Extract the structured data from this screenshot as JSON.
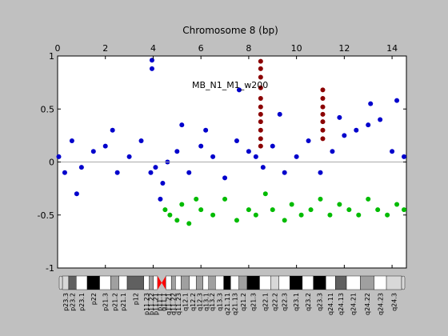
{
  "chart_data": {
    "type": "scatter",
    "title": "Chromosome 8 (bp)",
    "annotation": "MB_N1_M1_w200",
    "xlabel": "",
    "ylabel": "",
    "xlim": [
      0,
      14.6
    ],
    "ylim": [
      -1,
      1
    ],
    "x_ticks": [
      0,
      2,
      4,
      6,
      8,
      10,
      12,
      14
    ],
    "x_tick_labels": [
      "0",
      "2",
      "4",
      "6",
      "8",
      "10",
      "12",
      "14"
    ],
    "y_ticks": [
      1,
      0.5,
      0,
      -0.5,
      -1
    ],
    "y_tick_labels": [
      "1",
      "0.5",
      "0",
      "-0.5",
      "-1"
    ],
    "x_axis_position": "top",
    "grid": false,
    "baseline": 0,
    "colors": {
      "neutral": "#0000cc",
      "gain": "#8b0000",
      "loss": "#00bb00",
      "baseline": "#aaaaaa",
      "centromere": "#ff0000"
    },
    "series": [
      {
        "role": "neutral",
        "x": [
          0.05,
          0.3,
          0.6,
          1.0,
          1.5,
          2.0,
          2.5,
          3.0,
          3.5,
          3.9,
          4.1,
          4.4,
          4.6,
          5.0,
          5.5,
          6.0,
          6.5,
          7.0,
          7.5,
          8.0,
          8.3,
          8.6,
          9.0,
          9.5,
          10.0,
          10.5,
          11.0,
          11.5,
          12.0,
          12.5,
          13.0,
          13.5,
          14.0,
          14.5,
          3.95,
          3.95,
          4.3,
          0.8,
          2.3,
          5.2,
          6.2,
          7.6,
          9.3,
          11.8,
          13.1,
          14.2
        ],
        "y": [
          0.05,
          -0.1,
          0.2,
          -0.05,
          0.1,
          0.15,
          -0.1,
          0.05,
          0.2,
          -0.1,
          -0.05,
          -0.2,
          0.0,
          0.1,
          -0.1,
          0.15,
          0.05,
          -0.15,
          0.2,
          0.1,
          0.05,
          -0.05,
          0.15,
          -0.1,
          0.05,
          0.2,
          -0.1,
          0.1,
          0.25,
          0.3,
          0.35,
          0.4,
          0.1,
          0.05,
          0.96,
          0.88,
          -0.35,
          -0.3,
          0.3,
          0.35,
          0.3,
          0.68,
          0.45,
          0.42,
          0.55,
          0.58
        ]
      },
      {
        "role": "gain",
        "x": [
          8.5,
          8.5,
          8.5,
          8.5,
          8.5,
          8.5,
          8.5,
          8.5,
          8.5,
          8.5,
          8.5,
          11.1,
          11.1,
          11.1,
          11.1,
          11.1,
          11.1,
          11.1
        ],
        "y": [
          0.95,
          0.88,
          0.8,
          0.7,
          0.6,
          0.52,
          0.45,
          0.38,
          0.3,
          0.22,
          0.15,
          0.68,
          0.6,
          0.52,
          0.45,
          0.38,
          0.3,
          0.22
        ]
      },
      {
        "role": "loss",
        "x": [
          4.5,
          4.7,
          5.0,
          5.2,
          5.5,
          5.8,
          6.0,
          6.5,
          7.0,
          7.5,
          8.0,
          8.3,
          8.7,
          9.0,
          9.5,
          9.8,
          10.2,
          10.6,
          11.0,
          11.4,
          11.8,
          12.2,
          12.6,
          13.0,
          13.4,
          13.8,
          14.2,
          14.5
        ],
        "y": [
          -0.45,
          -0.5,
          -0.55,
          -0.4,
          -0.58,
          -0.35,
          -0.45,
          -0.5,
          -0.35,
          -0.55,
          -0.45,
          -0.5,
          -0.3,
          -0.45,
          -0.55,
          -0.4,
          -0.5,
          -0.45,
          -0.35,
          -0.5,
          -0.4,
          -0.45,
          -0.5,
          -0.35,
          -0.45,
          -0.5,
          -0.4,
          -0.45
        ]
      }
    ],
    "ideogram": {
      "bands": [
        {
          "label": "p23.3",
          "start": 0.0,
          "end": 0.23,
          "stain": "light"
        },
        {
          "label": "p23.2",
          "start": 0.23,
          "end": 0.5,
          "stain": "dark"
        },
        {
          "label": "p23.1",
          "start": 0.5,
          "end": 0.9,
          "stain": "white"
        },
        {
          "label": "p22",
          "start": 0.9,
          "end": 1.35,
          "stain": "black"
        },
        {
          "label": "p21.3",
          "start": 1.35,
          "end": 1.75,
          "stain": "white"
        },
        {
          "label": "p21.2",
          "start": 1.75,
          "end": 2.05,
          "stain": "grey"
        },
        {
          "label": "p21.1",
          "start": 2.05,
          "end": 2.35,
          "stain": "white"
        },
        {
          "label": "p12",
          "start": 2.35,
          "end": 2.95,
          "stain": "dark"
        },
        {
          "label": "p11.23",
          "start": 2.95,
          "end": 3.15,
          "stain": "white"
        },
        {
          "label": "p11.22",
          "start": 3.15,
          "end": 3.3,
          "stain": "grey"
        },
        {
          "label": "p11.21",
          "start": 3.3,
          "end": 3.45,
          "stain": "white"
        },
        {
          "label": "p11.1",
          "start": 3.45,
          "end": 3.6,
          "stain": "centromere"
        },
        {
          "label": "q11.1",
          "start": 3.6,
          "end": 3.75,
          "stain": "centromere"
        },
        {
          "label": "q11.21",
          "start": 3.75,
          "end": 3.95,
          "stain": "white"
        },
        {
          "label": "q11.22",
          "start": 3.95,
          "end": 4.1,
          "stain": "grey"
        },
        {
          "label": "q11.23",
          "start": 4.1,
          "end": 4.3,
          "stain": "white"
        },
        {
          "label": "q12.1",
          "start": 4.3,
          "end": 4.6,
          "stain": "grey"
        },
        {
          "label": "q12.2",
          "start": 4.6,
          "end": 4.85,
          "stain": "white"
        },
        {
          "label": "q12.3",
          "start": 4.85,
          "end": 5.1,
          "stain": "grey"
        },
        {
          "label": "q13.1",
          "start": 5.1,
          "end": 5.3,
          "stain": "white"
        },
        {
          "label": "q13.2",
          "start": 5.3,
          "end": 5.55,
          "stain": "grey"
        },
        {
          "label": "q13.3",
          "start": 5.55,
          "end": 5.85,
          "stain": "white"
        },
        {
          "label": "q21.11",
          "start": 5.85,
          "end": 6.1,
          "stain": "black"
        },
        {
          "label": "q21.13",
          "start": 6.1,
          "end": 6.4,
          "stain": "white"
        },
        {
          "label": "q21.2",
          "start": 6.4,
          "end": 6.7,
          "stain": "grey"
        },
        {
          "label": "q21.3",
          "start": 6.7,
          "end": 7.15,
          "stain": "black"
        },
        {
          "label": "q22.1",
          "start": 7.15,
          "end": 7.55,
          "stain": "white"
        },
        {
          "label": "q22.2",
          "start": 7.55,
          "end": 7.85,
          "stain": "light"
        },
        {
          "label": "q22.3",
          "start": 7.85,
          "end": 8.25,
          "stain": "white"
        },
        {
          "label": "q23.1",
          "start": 8.25,
          "end": 8.7,
          "stain": "black"
        },
        {
          "label": "q23.2",
          "start": 8.7,
          "end": 9.1,
          "stain": "white"
        },
        {
          "label": "q23.3",
          "start": 9.1,
          "end": 9.55,
          "stain": "black"
        },
        {
          "label": "q24.11",
          "start": 9.55,
          "end": 9.9,
          "stain": "white"
        },
        {
          "label": "q24.13",
          "start": 9.9,
          "end": 10.3,
          "stain": "dark"
        },
        {
          "label": "q24.21",
          "start": 10.3,
          "end": 10.8,
          "stain": "white"
        },
        {
          "label": "q24.22",
          "start": 10.8,
          "end": 11.3,
          "stain": "grey"
        },
        {
          "label": "q24.23",
          "start": 11.3,
          "end": 11.75,
          "stain": "white"
        },
        {
          "label": "q24.3",
          "start": 11.75,
          "end": 12.3,
          "stain": "light"
        }
      ],
      "colors": {
        "white": "#ffffff",
        "light": "#d8d8d8",
        "grey": "#a0a0a0",
        "dark": "#606060",
        "black": "#000000",
        "centromere": "#ff0000"
      }
    }
  }
}
